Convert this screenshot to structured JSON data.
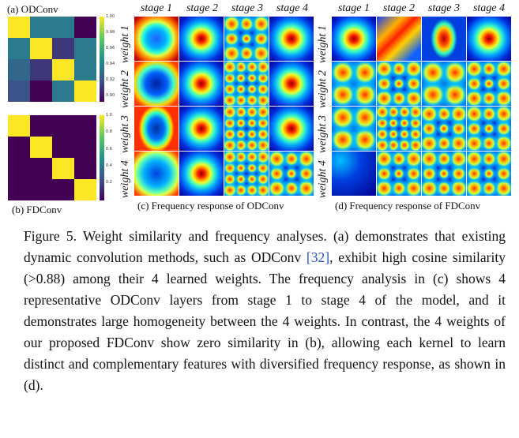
{
  "panels": {
    "a_label": "(a) ODConv",
    "b_label": "(b) FDConv",
    "c_label": "(c) Frequency response of ODConv",
    "d_label": "(d) Frequency response of FDConv"
  },
  "stages": [
    "stage 1",
    "stage 2",
    "stage 3",
    "stage 4"
  ],
  "weights": [
    "weight 1",
    "weight 2",
    "weight 3",
    "weight 4"
  ],
  "colorbar_a": [
    "1.00",
    "0.98",
    "0.96",
    "0.94",
    "0.92",
    "0.90"
  ],
  "colorbar_b": [
    "1.0",
    "0.8",
    "0.6",
    "0.4",
    "0.2"
  ],
  "similarity": {
    "odconv": [
      [
        1.0,
        0.93,
        0.93,
        0.88
      ],
      [
        0.93,
        1.0,
        0.9,
        0.93
      ],
      [
        0.92,
        0.9,
        1.0,
        0.93
      ],
      [
        0.91,
        0.88,
        0.93,
        1.0
      ]
    ],
    "fdconv": [
      [
        1,
        0,
        0,
        0
      ],
      [
        0,
        1,
        0,
        0
      ],
      [
        0,
        0,
        1,
        0
      ],
      [
        0,
        0,
        0,
        1
      ]
    ]
  },
  "caption": {
    "p1": "Figure 5. Weight similarity and frequency analyses. (a) demonstrates that existing dynamic convolution methods, such as ODConv ",
    "ref": "[32]",
    "p2": ", exhibit high cosine similarity (>0.88) among their 4 learned weights. The frequency analysis in (c) shows 4 representative ODConv layers from stage 1 to stage 4 of the model, and it demonstrates large homogeneity between the 4 weights. In contrast, the 4 weights of our proposed FDConv show zero similarity in (b), allowing each kernel to learn distinct and complementary features with diversified frequency response, as shown in (d)."
  }
}
